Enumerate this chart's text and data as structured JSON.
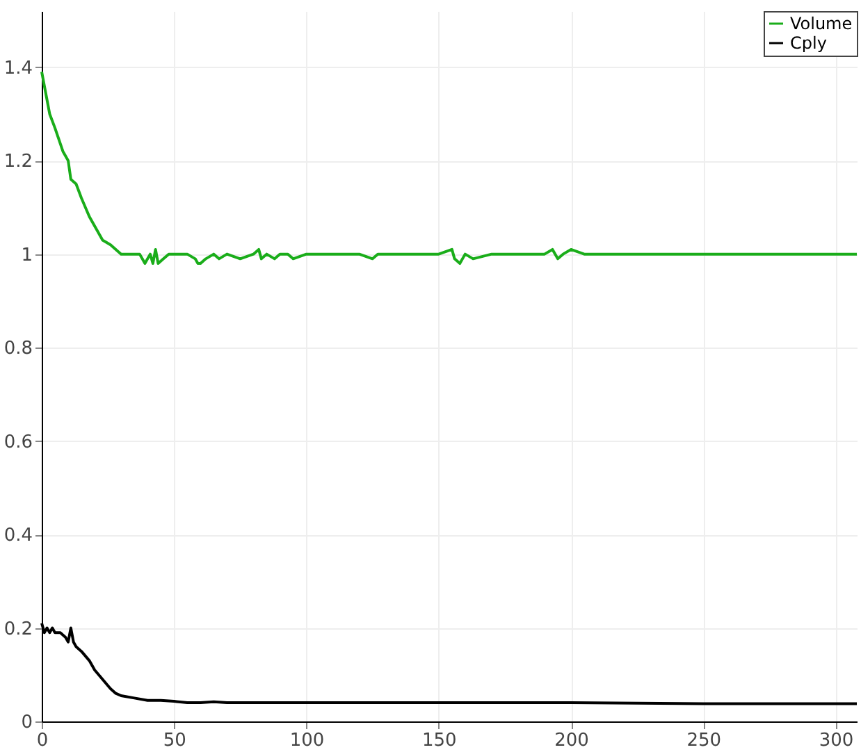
{
  "chart_data": {
    "type": "line",
    "xlim": [
      0,
      308
    ],
    "ylim": [
      0,
      1.52
    ],
    "xticks": [
      0,
      50,
      100,
      150,
      200,
      250,
      300
    ],
    "yticks": [
      0,
      0.2,
      0.4,
      0.6,
      0.8,
      1,
      1.2,
      1.4
    ],
    "grid": true,
    "legend": "top right",
    "line_style": "solid",
    "marker": "none",
    "series": [
      {
        "name": "Volume",
        "color": "#1aad1a",
        "x": [
          0,
          1,
          3,
          5,
          8,
          10,
          11,
          13,
          15,
          18,
          20,
          23,
          26,
          30,
          33,
          37,
          38,
          39,
          40,
          41,
          42,
          43,
          44,
          46,
          48,
          50,
          55,
          58,
          59,
          60,
          62,
          65,
          67,
          70,
          75,
          80,
          82,
          83,
          85,
          88,
          90,
          93,
          95,
          100,
          105,
          120,
          125,
          127,
          130,
          140,
          150,
          155,
          156,
          158,
          160,
          163,
          170,
          180,
          190,
          193,
          195,
          197,
          200,
          205,
          210,
          250,
          300,
          308
        ],
        "values": [
          1.39,
          1.36,
          1.3,
          1.27,
          1.22,
          1.2,
          1.16,
          1.15,
          1.12,
          1.08,
          1.06,
          1.03,
          1.02,
          1.0,
          1.0,
          1.0,
          0.99,
          0.98,
          0.99,
          1.0,
          0.98,
          1.01,
          0.98,
          0.99,
          1.0,
          1.0,
          1.0,
          0.99,
          0.98,
          0.98,
          0.99,
          1.0,
          0.99,
          1.0,
          0.99,
          1.0,
          1.01,
          0.99,
          1.0,
          0.99,
          1.0,
          1.0,
          0.99,
          1.0,
          1.0,
          1.0,
          0.99,
          1.0,
          1.0,
          1.0,
          1.0,
          1.01,
          0.99,
          0.98,
          1.0,
          0.99,
          1.0,
          1.0,
          1.0,
          1.01,
          0.99,
          1.0,
          1.01,
          1.0,
          1.0,
          1.0,
          1.0,
          1.0
        ]
      },
      {
        "name": "Cply",
        "color": "#000000",
        "x": [
          0,
          1,
          2,
          3,
          4,
          5,
          7,
          9,
          10,
          11,
          12,
          13,
          15,
          18,
          20,
          23,
          26,
          28,
          30,
          35,
          40,
          45,
          50,
          55,
          60,
          65,
          70,
          100,
          150,
          200,
          250,
          308
        ],
        "values": [
          0.21,
          0.19,
          0.2,
          0.19,
          0.2,
          0.19,
          0.19,
          0.18,
          0.17,
          0.2,
          0.17,
          0.16,
          0.15,
          0.13,
          0.11,
          0.09,
          0.07,
          0.06,
          0.055,
          0.05,
          0.045,
          0.045,
          0.043,
          0.04,
          0.04,
          0.042,
          0.04,
          0.04,
          0.04,
          0.04,
          0.038,
          0.038
        ]
      }
    ]
  }
}
